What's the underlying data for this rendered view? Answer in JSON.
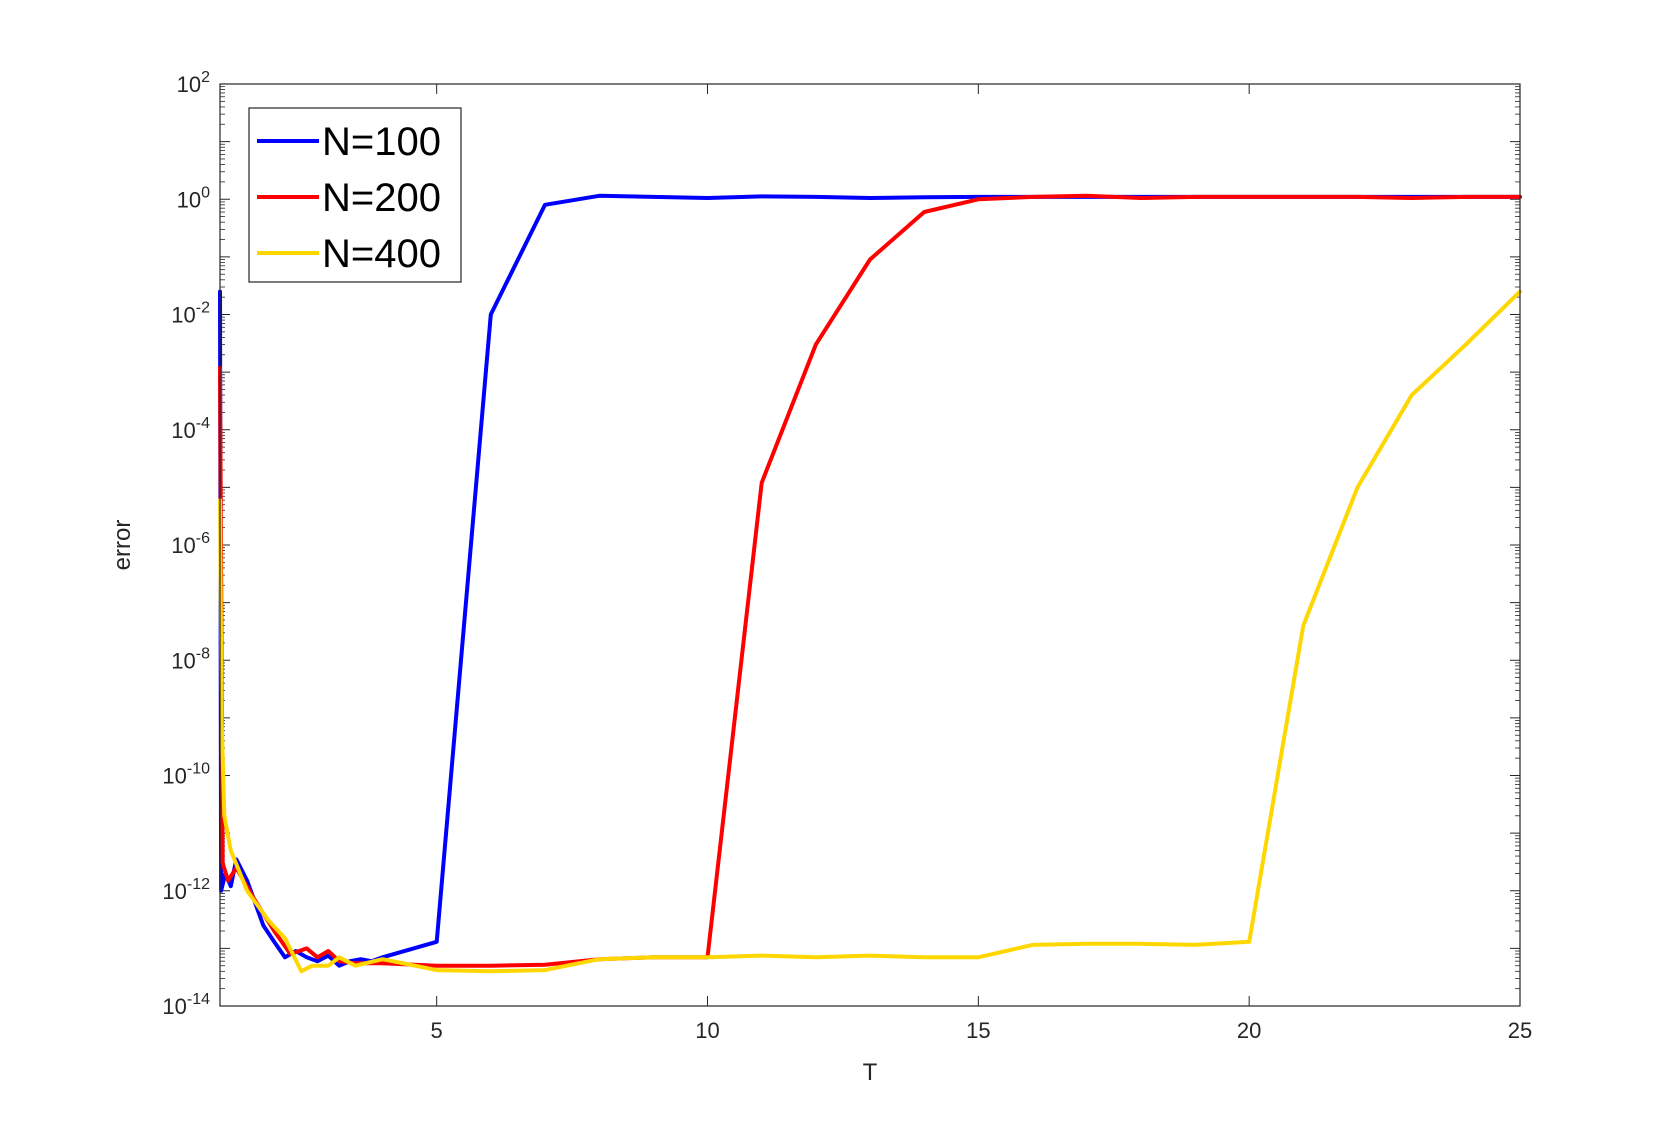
{
  "chart_data": {
    "type": "line",
    "xlabel": "T",
    "ylabel": "error",
    "xlim": [
      1,
      25
    ],
    "ylim": [
      1e-14,
      100
    ],
    "yscale": "log",
    "grid": false,
    "legend_position": "top-left",
    "x_ticks": [
      5,
      10,
      15,
      20,
      25
    ],
    "x_tick_labels": [
      "5",
      "10",
      "15",
      "20",
      "25"
    ],
    "y_ticks": [
      {
        "exp": 2,
        "base": "10",
        "sup": "2"
      },
      {
        "exp": 0,
        "base": "10",
        "sup": "0"
      },
      {
        "exp": -2,
        "base": "10",
        "sup": "-2"
      },
      {
        "exp": -4,
        "base": "10",
        "sup": "-4"
      },
      {
        "exp": -6,
        "base": "10",
        "sup": "-6"
      },
      {
        "exp": -8,
        "base": "10",
        "sup": "-8"
      },
      {
        "exp": -10,
        "base": "10",
        "sup": "-10"
      },
      {
        "exp": -12,
        "base": "10",
        "sup": "-12"
      },
      {
        "exp": -14,
        "base": "10",
        "sup": "-14"
      }
    ],
    "series": [
      {
        "name": "N=100",
        "color": "#0000ff",
        "x": [
          1,
          1.02,
          1.1,
          1.2,
          1.3,
          1.5,
          1.8,
          2.0,
          2.2,
          2.4,
          2.6,
          2.8,
          3.0,
          3.2,
          3.4,
          3.6,
          3.8,
          4,
          5,
          6,
          7,
          8,
          9,
          10,
          11,
          12,
          13,
          14,
          15,
          16,
          17,
          18,
          19,
          20,
          21,
          22,
          23,
          24,
          25
        ],
        "y": [
          0.025,
          1e-12,
          2e-12,
          1.2e-12,
          3.5e-12,
          1.5e-12,
          2.5e-13,
          1.3e-13,
          7e-14,
          9e-14,
          7e-14,
          6e-14,
          7.5e-14,
          5e-14,
          6e-14,
          6.5e-14,
          6e-14,
          7e-14,
          1.3e-13,
          0.01,
          0.8,
          1.15,
          1.1,
          1.05,
          1.12,
          1.1,
          1.05,
          1.08,
          1.1,
          1.1,
          1.1,
          1.1,
          1.1,
          1.1,
          1.1,
          1.1,
          1.1,
          1.1,
          1.1
        ]
      },
      {
        "name": "N=200",
        "color": "#ff0000",
        "x": [
          1,
          1.05,
          1.15,
          1.3,
          1.6,
          2.0,
          2.3,
          2.6,
          2.8,
          3.0,
          3.2,
          3.5,
          4,
          5,
          6,
          7,
          8,
          9,
          10,
          11,
          12,
          13,
          14,
          15,
          16,
          17,
          18,
          19,
          20,
          21,
          22,
          23,
          24,
          25
        ],
        "y": [
          0.0012,
          3e-12,
          1.5e-12,
          2.5e-12,
          8e-13,
          2e-13,
          8e-14,
          1e-13,
          7e-14,
          9e-14,
          6e-14,
          5.5e-14,
          5.5e-14,
          5e-14,
          5e-14,
          5.2e-14,
          6.5e-14,
          7e-14,
          7e-14,
          1.2e-05,
          0.003,
          0.09,
          0.6,
          1.0,
          1.1,
          1.15,
          1.05,
          1.1,
          1.1,
          1.1,
          1.1,
          1.05,
          1.1,
          1.1
        ]
      },
      {
        "name": "N=400",
        "color": "#ffd700",
        "x": [
          1,
          1.03,
          1.08,
          1.2,
          1.5,
          1.9,
          2.2,
          2.5,
          2.7,
          3.0,
          3.2,
          3.5,
          4,
          5,
          6,
          7,
          8,
          9,
          10,
          11,
          12,
          13,
          14,
          15,
          16,
          17,
          18,
          19,
          20,
          21,
          22,
          23,
          24,
          25
        ],
        "y": [
          6e-06,
          1e-09,
          2e-11,
          5e-12,
          1e-12,
          3e-13,
          1.5e-13,
          4e-14,
          5e-14,
          5e-14,
          7e-14,
          5e-14,
          6.5e-14,
          4.2e-14,
          4e-14,
          4.2e-14,
          6.5e-14,
          7e-14,
          7e-14,
          7.5e-14,
          7e-14,
          7.5e-14,
          7e-14,
          7e-14,
          1.15e-13,
          1.2e-13,
          1.2e-13,
          1.15e-13,
          1.3e-13,
          4e-08,
          1e-05,
          0.0004,
          0.003,
          0.025
        ]
      }
    ]
  }
}
